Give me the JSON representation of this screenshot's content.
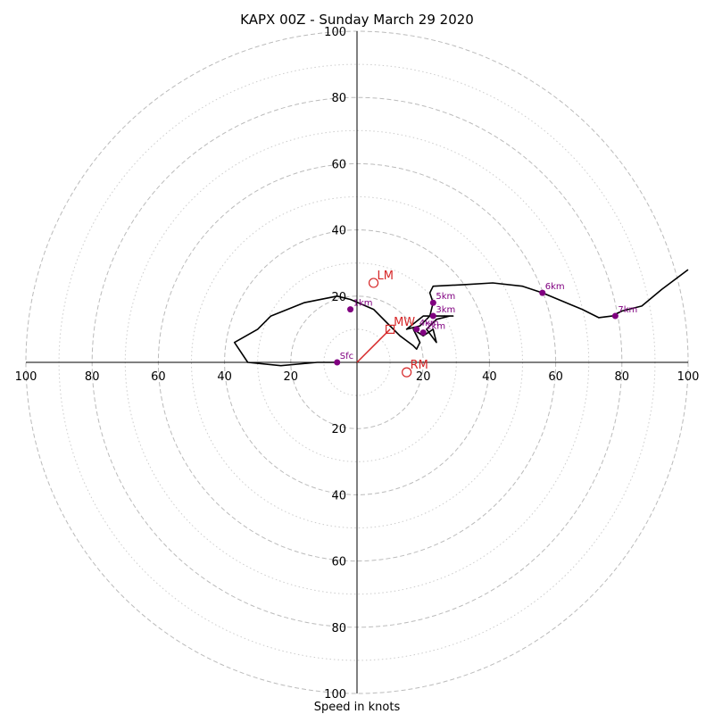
{
  "chart_data": {
    "type": "scatter",
    "title": "KAPX 00Z - Sunday March 29 2020",
    "xlabel": "Speed in knots",
    "ylabel": "",
    "xlim": [
      -100,
      100
    ],
    "ylim": [
      -100,
      100
    ],
    "ring_labels": [
      "100",
      "80",
      "60",
      "40",
      "20",
      "20",
      "40",
      "60",
      "80",
      "100"
    ],
    "ring_major": [
      20,
      40,
      60,
      80,
      100
    ],
    "ring_minor": [
      10,
      30,
      50,
      70,
      90
    ],
    "grid": true,
    "colors": {
      "hodograph": "#000000",
      "levels": "#800080",
      "motion": "#d62728",
      "grid": "#bbbbbb"
    },
    "hodograph": {
      "x": [
        -6,
        -12,
        -23,
        -33,
        -37,
        -30,
        -26,
        -16,
        -6,
        -2,
        5,
        9,
        13,
        17,
        18,
        19,
        17,
        20,
        23,
        24,
        21,
        24,
        28,
        29,
        22,
        20,
        15,
        19,
        22,
        23,
        22,
        23,
        33,
        41,
        50,
        56,
        62,
        68,
        73,
        77,
        80,
        86,
        92,
        100
      ],
      "y": [
        0,
        0,
        -1,
        0,
        6,
        10,
        14,
        18,
        20,
        19,
        16,
        12,
        8,
        5,
        4,
        6,
        10,
        8,
        10,
        6,
        10,
        13,
        14,
        14,
        14,
        14,
        10,
        11,
        14,
        18,
        21,
        23,
        23.5,
        24,
        23,
        21,
        18.5,
        16,
        13.5,
        14,
        15.5,
        17,
        22,
        28
      ]
    },
    "levels": [
      {
        "label": "Sfc",
        "x": -6,
        "y": 0
      },
      {
        "label": "1km",
        "x": -2,
        "y": 16
      },
      {
        "label": "2km",
        "x": 20,
        "y": 9
      },
      {
        "label": "3km",
        "x": 23,
        "y": 14
      },
      {
        "label": "4km",
        "x": 18,
        "y": 10
      },
      {
        "label": "5km",
        "x": 23,
        "y": 18
      },
      {
        "label": "6km",
        "x": 56,
        "y": 21
      },
      {
        "label": "7km",
        "x": 78,
        "y": 14
      }
    ],
    "storm_motion": [
      {
        "label": "LM",
        "x": 5,
        "y": 24,
        "marker": "circle"
      },
      {
        "label": "MW",
        "x": 10,
        "y": 10,
        "marker": "square"
      },
      {
        "label": "RM",
        "x": 15,
        "y": -3,
        "marker": "circle"
      }
    ],
    "mean_wind_vector": {
      "x": 10,
      "y": 10
    }
  }
}
